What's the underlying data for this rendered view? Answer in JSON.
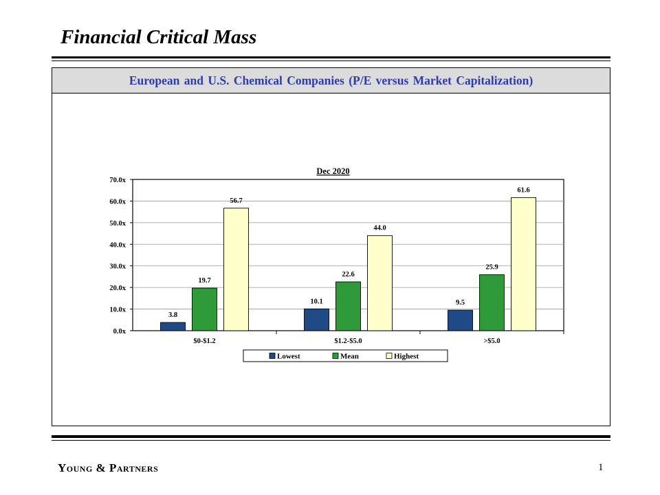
{
  "slide": {
    "title": "Financial Critical Mass",
    "panel_title": "European and U.S. Chemical Companies (P/E versus Market Capitalization)",
    "firm": "Young & Partners",
    "page_number": "1"
  },
  "colors": {
    "panel_header_text": "#2e3bab",
    "panel_header_bg": "#dcdcdc"
  },
  "chart_data": {
    "type": "bar",
    "title": "Dec 2020",
    "xlabel": "",
    "ylabel": "",
    "categories": [
      "$0-$1.2",
      "$1.2-$5.0",
      ">$5.0"
    ],
    "series": [
      {
        "name": "Lowest",
        "color": "#1f4a86",
        "values": [
          3.8,
          10.1,
          9.5
        ]
      },
      {
        "name": "Mean",
        "color": "#2e9a3a",
        "values": [
          19.7,
          22.6,
          25.9
        ]
      },
      {
        "name": "Highest",
        "color": "#ffffcc",
        "values": [
          56.7,
          44.0,
          61.6
        ]
      }
    ],
    "data_labels": [
      [
        "3.8",
        "10.1",
        "9.5"
      ],
      [
        "19.7",
        "22.6",
        "25.9"
      ],
      [
        "56.7",
        "44.0",
        "61.6"
      ]
    ],
    "yticks": [
      "0.0x",
      "10.0x",
      "20.0x",
      "30.0x",
      "40.0x",
      "50.0x",
      "60.0x",
      "70.0x"
    ],
    "ylim": [
      0,
      70
    ],
    "grid": true,
    "legend": "bottom"
  }
}
